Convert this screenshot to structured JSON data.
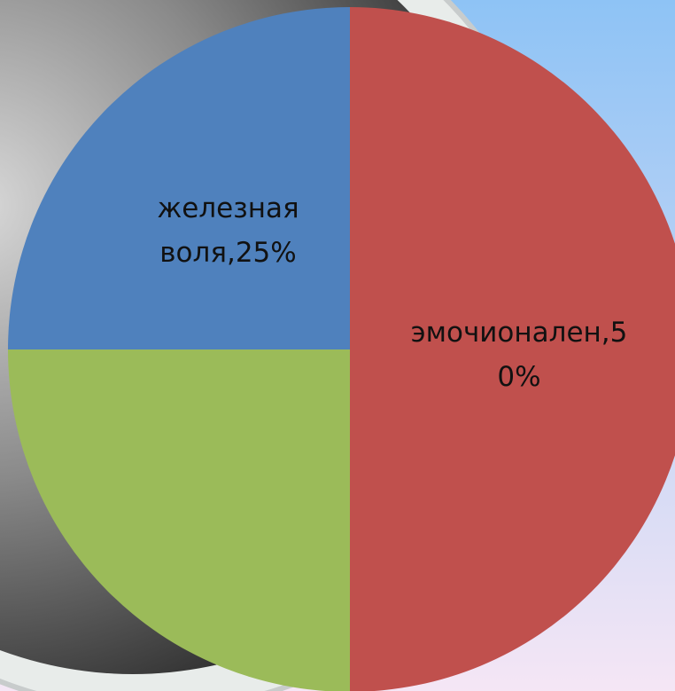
{
  "chart_data": {
    "type": "pie",
    "values": [
      50,
      25,
      25
    ],
    "value_labels": [
      "эмочионален,50%",
      null,
      "железная воля,25%"
    ],
    "colors": [
      "#c0504d",
      "#9bbb59",
      "#4f81bd"
    ]
  }
}
